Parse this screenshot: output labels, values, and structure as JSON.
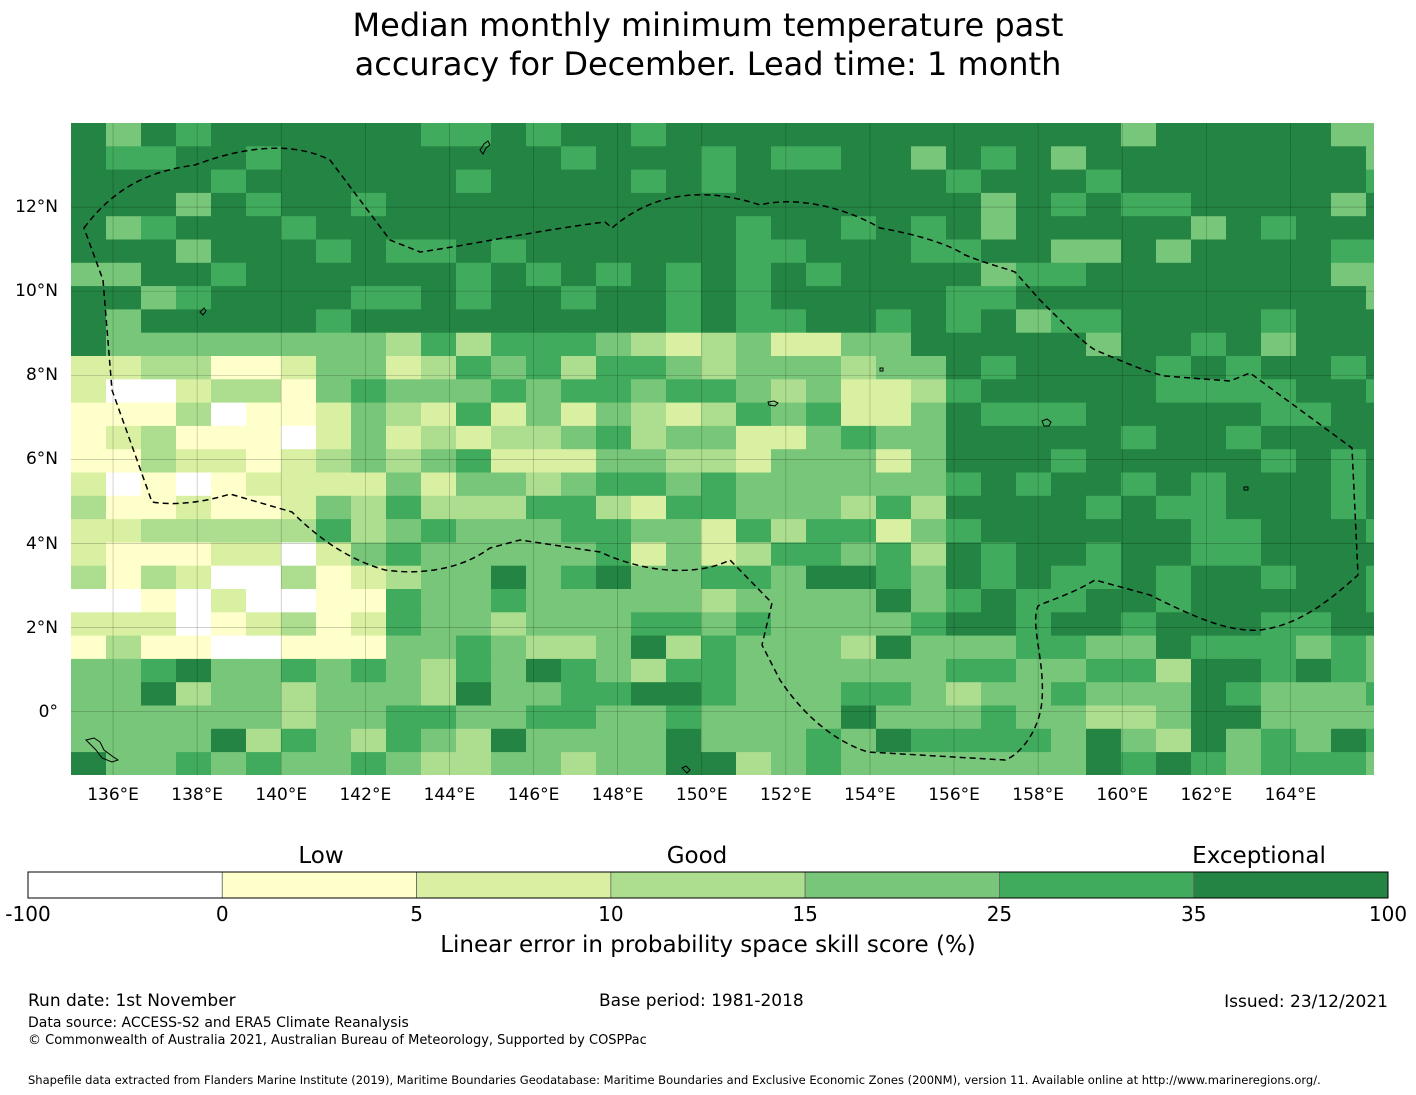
{
  "title_line1": "Median monthly minimum temperature past",
  "title_line2": "accuracy for December. Lead time: 1 month",
  "map": {
    "lon_range": [
      135,
      166
    ],
    "lat_range": [
      -1.5,
      14
    ],
    "x_ticks": [
      "136°E",
      "138°E",
      "140°E",
      "142°E",
      "144°E",
      "146°E",
      "148°E",
      "150°E",
      "152°E",
      "154°E",
      "156°E",
      "158°E",
      "160°E",
      "162°E",
      "164°E"
    ],
    "y_ticks": [
      "12°N",
      "10°N",
      "8°N",
      "6°N",
      "4°N",
      "2°N",
      "0°"
    ],
    "region": "Federated States of Micronesia (EEZ outline)"
  },
  "colorbar": {
    "category_labels": [
      "Low",
      "Good",
      "Exceptional"
    ],
    "boundaries": [
      "-100",
      "0",
      "5",
      "10",
      "15",
      "25",
      "35",
      "100"
    ],
    "colors": [
      "#ffffff",
      "#ffffcc",
      "#d9f0a3",
      "#addd8e",
      "#78c679",
      "#41ab5d",
      "#238443"
    ],
    "title": "Linear error in probability space skill score (%)"
  },
  "footer": {
    "run_date": "Run date: 1st November",
    "base_period": "Base period: 1981-2018",
    "issued": "Issued: 23/12/2021",
    "data_source": "Data source: ACCESS-S2 and ERA5 Climate Reanalysis",
    "copyright": "© Commonwealth of Australia 2021, Australian Bureau of Meteorology, Supported by COSPPac",
    "shapefile": "Shapefile data extracted from Flanders Marine Institute (2019), Maritime Boundaries Geodatabase: Maritime Boundaries and Exclusive Economic Zones (200NM), version 11. Available online at http://www.marineregions.org/."
  }
}
